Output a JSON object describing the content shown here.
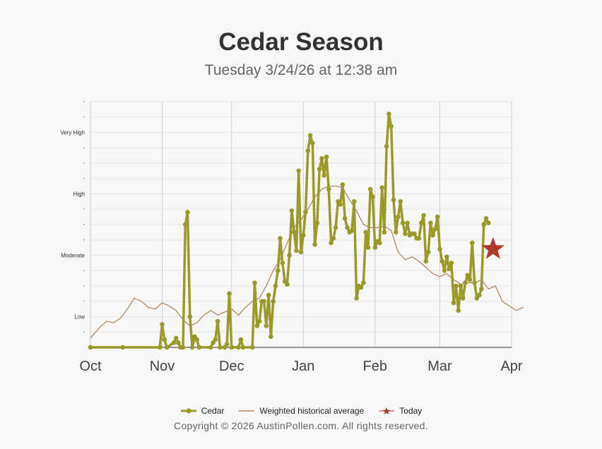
{
  "title": "Cedar Season",
  "subtitle": "Tuesday 3/24/26 at 12:38 am",
  "copyright": "Copyright © 2026 AustinPollen.com.  All rights reserved.",
  "legend": {
    "cedar": "Cedar",
    "historical": "Weighted historical average",
    "today": "Today"
  },
  "colors": {
    "cedar": "#9a9a2a",
    "historical": "#b38a63",
    "today": "#b03a2e",
    "grid": "#e6e6e6",
    "month_line": "#cfcfcf"
  },
  "chart_data": {
    "type": "line",
    "title": "Cedar Season",
    "subtitle": "Tuesday 3/24/26 at 12:38 am",
    "x_ticks": [
      "Oct",
      "Nov",
      "Dec",
      "Jan",
      "Feb",
      "Mar",
      "Apr"
    ],
    "x_range": [
      "2025-10-01",
      "2026-04-01"
    ],
    "y_levels": [
      "Low",
      "Moderate",
      "High",
      "Very High"
    ],
    "y_level_values": [
      2,
      6,
      10,
      14
    ],
    "y_range": [
      0,
      16
    ],
    "today_marker": {
      "date": "2026-03-24",
      "level": 6.4
    },
    "series": [
      {
        "name": "Cedar",
        "values": [
          [
            "2025-10-01",
            0
          ],
          [
            "2025-10-15",
            0
          ],
          [
            "2025-10-31",
            0
          ],
          [
            "2025-11-01",
            1.5
          ],
          [
            "2025-11-02",
            0.5
          ],
          [
            "2025-11-03",
            0
          ],
          [
            "2025-11-06",
            0.3
          ],
          [
            "2025-11-07",
            0.6
          ],
          [
            "2025-11-08",
            0.3
          ],
          [
            "2025-11-09",
            0
          ],
          [
            "2025-11-10",
            0
          ],
          [
            "2025-11-11",
            8
          ],
          [
            "2025-11-12",
            8.8
          ],
          [
            "2025-11-13",
            2
          ],
          [
            "2025-11-14",
            0
          ],
          [
            "2025-11-15",
            0.7
          ],
          [
            "2025-11-16",
            0.5
          ],
          [
            "2025-11-17",
            0
          ],
          [
            "2025-11-22",
            0
          ],
          [
            "2025-11-23",
            0.3
          ],
          [
            "2025-11-24",
            0.5
          ],
          [
            "2025-11-25",
            1.7
          ],
          [
            "2025-11-26",
            0
          ],
          [
            "2025-11-28",
            0
          ],
          [
            "2025-11-29",
            0.2
          ],
          [
            "2025-11-30",
            3.5
          ],
          [
            "2025-12-01",
            0
          ],
          [
            "2025-12-04",
            0
          ],
          [
            "2025-12-05",
            0.5
          ],
          [
            "2025-12-06",
            0
          ],
          [
            "2025-12-10",
            0
          ],
          [
            "2025-12-11",
            4.2
          ],
          [
            "2025-12-12",
            1.4
          ],
          [
            "2025-12-13",
            1.7
          ],
          [
            "2025-12-14",
            3
          ],
          [
            "2025-12-15",
            3
          ],
          [
            "2025-12-16",
            1.4
          ],
          [
            "2025-12-17",
            3.4
          ],
          [
            "2025-12-18",
            0.7
          ],
          [
            "2025-12-19",
            3
          ],
          [
            "2025-12-20",
            4
          ],
          [
            "2025-12-21",
            5
          ],
          [
            "2025-12-22",
            7.1
          ],
          [
            "2025-12-23",
            5.5
          ],
          [
            "2025-12-24",
            4.3
          ],
          [
            "2025-12-25",
            4.1
          ],
          [
            "2025-12-26",
            6
          ],
          [
            "2025-12-27",
            8.9
          ],
          [
            "2025-12-28",
            7.5
          ],
          [
            "2025-12-29",
            6.3
          ],
          [
            "2025-12-30",
            11.5
          ],
          [
            "2025-12-31",
            6.2
          ],
          [
            "2026-01-01",
            7.3
          ],
          [
            "2026-01-02",
            8.8
          ],
          [
            "2026-01-03",
            12.8
          ],
          [
            "2026-01-04",
            13.8
          ],
          [
            "2026-01-05",
            13.3
          ],
          [
            "2026-01-06",
            6.7
          ],
          [
            "2026-01-07",
            8.1
          ],
          [
            "2026-01-08",
            11.6
          ],
          [
            "2026-01-09",
            12.3
          ],
          [
            "2026-01-10",
            11.2
          ],
          [
            "2026-01-11",
            12.4
          ],
          [
            "2026-01-12",
            10.3
          ],
          [
            "2026-01-13",
            6.8
          ],
          [
            "2026-01-14",
            7.1
          ],
          [
            "2026-01-15",
            7.8
          ],
          [
            "2026-01-16",
            9.5
          ],
          [
            "2026-01-17",
            9.3
          ],
          [
            "2026-01-18",
            10.6
          ],
          [
            "2026-01-19",
            8.4
          ],
          [
            "2026-01-20",
            7.8
          ],
          [
            "2026-01-21",
            7.5
          ],
          [
            "2026-01-22",
            7.6
          ],
          [
            "2026-01-23",
            9.5
          ],
          [
            "2026-01-24",
            3.2
          ],
          [
            "2026-01-25",
            4
          ],
          [
            "2026-01-26",
            3.9
          ],
          [
            "2026-01-27",
            4.2
          ],
          [
            "2026-01-28",
            7.5
          ],
          [
            "2026-01-29",
            6.5
          ],
          [
            "2026-01-30",
            10.3
          ],
          [
            "2026-01-31",
            9.8
          ],
          [
            "2026-02-01",
            6.5
          ],
          [
            "2026-02-02",
            6.9
          ],
          [
            "2026-02-03",
            6.8
          ],
          [
            "2026-02-04",
            10.4
          ],
          [
            "2026-02-05",
            7.5
          ],
          [
            "2026-02-06",
            13.1
          ],
          [
            "2026-02-07",
            15.2
          ],
          [
            "2026-02-08",
            14.4
          ],
          [
            "2026-02-09",
            9.6
          ],
          [
            "2026-02-10",
            7.5
          ],
          [
            "2026-02-11",
            8.5
          ],
          [
            "2026-02-12",
            9.5
          ],
          [
            "2026-02-13",
            8.1
          ],
          [
            "2026-02-14",
            7.4
          ],
          [
            "2026-02-15",
            8.1
          ],
          [
            "2026-02-16",
            7.3
          ],
          [
            "2026-02-17",
            7.4
          ],
          [
            "2026-02-18",
            7.4
          ],
          [
            "2026-02-19",
            7.1
          ],
          [
            "2026-02-20",
            7.1
          ],
          [
            "2026-02-21",
            8.1
          ],
          [
            "2026-02-22",
            8.6
          ],
          [
            "2026-02-23",
            5.6
          ],
          [
            "2026-02-24",
            6.2
          ],
          [
            "2026-02-25",
            8.1
          ],
          [
            "2026-02-26",
            7.3
          ],
          [
            "2026-02-27",
            7.7
          ],
          [
            "2026-02-28",
            8.5
          ],
          [
            "2026-03-01",
            6.4
          ],
          [
            "2026-03-02",
            5.6
          ],
          [
            "2026-03-03",
            5
          ],
          [
            "2026-03-04",
            5.9
          ],
          [
            "2026-03-05",
            5.1
          ],
          [
            "2026-03-06",
            5.5
          ],
          [
            "2026-03-07",
            2.9
          ],
          [
            "2026-03-08",
            4
          ],
          [
            "2026-03-09",
            2.4
          ],
          [
            "2026-03-10",
            4
          ],
          [
            "2026-03-11",
            3.2
          ],
          [
            "2026-03-12",
            4.2
          ],
          [
            "2026-03-13",
            4.7
          ],
          [
            "2026-03-14",
            4.4
          ],
          [
            "2026-03-15",
            6.8
          ],
          [
            "2026-03-16",
            4.2
          ],
          [
            "2026-03-17",
            3.2
          ],
          [
            "2026-03-18",
            3.4
          ],
          [
            "2026-03-19",
            3.8
          ],
          [
            "2026-03-20",
            8
          ],
          [
            "2026-03-21",
            8.4
          ],
          [
            "2026-03-22",
            8.1
          ]
        ]
      },
      {
        "name": "Weighted historical average",
        "values": [
          [
            "2025-10-01",
            0.6
          ],
          [
            "2025-10-05",
            1.3
          ],
          [
            "2025-10-08",
            1.7
          ],
          [
            "2025-10-11",
            1.6
          ],
          [
            "2025-10-14",
            1.9
          ],
          [
            "2025-10-17",
            2.5
          ],
          [
            "2025-10-20",
            3.2
          ],
          [
            "2025-10-23",
            3.0
          ],
          [
            "2025-10-26",
            2.6
          ],
          [
            "2025-10-29",
            2.5
          ],
          [
            "2025-11-01",
            2.9
          ],
          [
            "2025-11-04",
            2.7
          ],
          [
            "2025-11-07",
            2.4
          ],
          [
            "2025-11-10",
            1.8
          ],
          [
            "2025-11-13",
            1.4
          ],
          [
            "2025-11-16",
            1.6
          ],
          [
            "2025-11-19",
            2.1
          ],
          [
            "2025-11-22",
            2.4
          ],
          [
            "2025-11-25",
            2.1
          ],
          [
            "2025-11-28",
            2.3
          ],
          [
            "2025-12-01",
            2.5
          ],
          [
            "2025-12-04",
            2.1
          ],
          [
            "2025-12-07",
            2.6
          ],
          [
            "2025-12-10",
            3.0
          ],
          [
            "2025-12-13",
            3.2
          ],
          [
            "2025-12-16",
            4.0
          ],
          [
            "2025-12-19",
            5.0
          ],
          [
            "2025-12-22",
            5.7
          ],
          [
            "2025-12-25",
            6.8
          ],
          [
            "2025-12-28",
            7.8
          ],
          [
            "2025-12-31",
            8.3
          ],
          [
            "2026-01-03",
            9.0
          ],
          [
            "2026-01-06",
            9.8
          ],
          [
            "2026-01-09",
            10.3
          ],
          [
            "2026-01-12",
            10.5
          ],
          [
            "2026-01-15",
            10.5
          ],
          [
            "2026-01-18",
            10.4
          ],
          [
            "2026-01-21",
            9.6
          ],
          [
            "2026-01-24",
            8.9
          ],
          [
            "2026-01-27",
            8.0
          ],
          [
            "2026-01-30",
            7.8
          ],
          [
            "2026-02-02",
            7.8
          ],
          [
            "2026-02-05",
            7.9
          ],
          [
            "2026-02-08",
            7.6
          ],
          [
            "2026-02-11",
            6.2
          ],
          [
            "2026-02-14",
            5.7
          ],
          [
            "2026-02-17",
            5.9
          ],
          [
            "2026-02-20",
            5.6
          ],
          [
            "2026-02-23",
            5.2
          ],
          [
            "2026-02-26",
            4.8
          ],
          [
            "2026-03-01",
            4.6
          ],
          [
            "2026-03-04",
            4.8
          ],
          [
            "2026-03-07",
            4.4
          ],
          [
            "2026-03-10",
            4.1
          ],
          [
            "2026-03-13",
            4.2
          ],
          [
            "2026-03-16",
            4.2
          ],
          [
            "2026-03-19",
            4.4
          ],
          [
            "2026-03-22",
            3.8
          ],
          [
            "2026-03-25",
            4.0
          ],
          [
            "2026-03-28",
            3.0
          ],
          [
            "2026-03-31",
            2.7
          ],
          [
            "2026-04-03",
            2.4
          ],
          [
            "2026-04-06",
            2.6
          ]
        ]
      }
    ]
  }
}
